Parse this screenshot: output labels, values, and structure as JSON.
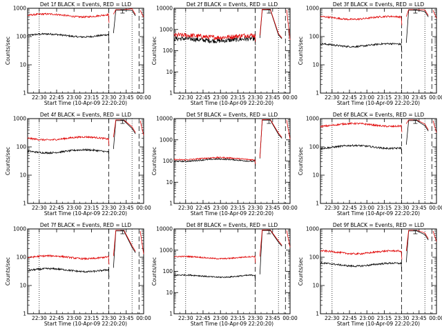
{
  "figure": {
    "panels": [
      {
        "title": "Det 1f BLACK = Events, RED = LLD",
        "ylim": [
          1,
          1000
        ],
        "black_level": 110,
        "red_level": 560,
        "red_end": 600
      },
      {
        "title": "Det 2f BLACK = Events, RED = LLD",
        "ylim": [
          1,
          10000
        ],
        "black_level": 330,
        "red_level": 480,
        "red_end": 400
      },
      {
        "title": "Det 3f BLACK = Events, RED = LLD",
        "ylim": [
          1,
          1000
        ],
        "black_level": 50,
        "red_level": 460,
        "red_end": 550
      },
      {
        "title": "Det 4f BLACK = Events, RED = LLD",
        "ylim": [
          1,
          1000
        ],
        "black_level": 70,
        "red_level": 200,
        "red_end": 320
      },
      {
        "title": "Det 5f BLACK = Events, RED = LLD",
        "ylim": [
          1,
          10000
        ],
        "black_level": 110,
        "red_level": 130,
        "red_end": 1300
      },
      {
        "title": "Det 6f BLACK = Events, RED = LLD",
        "ylim": [
          1,
          1000
        ],
        "black_level": 100,
        "red_level": 600,
        "red_end": 400
      },
      {
        "title": "Det 7f BLACK = Events, RED = LLD",
        "ylim": [
          1,
          1000
        ],
        "black_level": 35,
        "red_level": 100,
        "red_end": 160
      },
      {
        "title": "Det 8f BLACK = Events, RED = LLD",
        "ylim": [
          1,
          10000
        ],
        "black_level": 60,
        "red_level": 450,
        "red_end": 1700
      },
      {
        "title": "Det 9f BLACK = Events, RED = LLD",
        "ylim": [
          1,
          1000
        ],
        "black_level": 55,
        "red_level": 150,
        "red_end": 450
      }
    ],
    "ylabel": "Counts/sec",
    "xlabel": "Start Time (10-Apr-09 22:20:20)",
    "xticks_a": [
      "22:30",
      "22:45",
      "23:00",
      "23:15",
      "23:30",
      "23:45",
      "00:00"
    ],
    "xticks_b": [
      "22:30",
      "22:45",
      "23:00",
      "23:15",
      "23:30",
      "23:45",
      "00:00"
    ],
    "ytick_labels": {
      "1": "1",
      "10": "10",
      "100": "100",
      "1000": "1000",
      "10000": "10000"
    },
    "colors": {
      "events": "#000000",
      "lld": "#e00000",
      "axes": "#000000"
    }
  },
  "chart_data": {
    "type": "line",
    "x_unit": "minutes after 22:20:20",
    "x_range_minutes": [
      0,
      100
    ],
    "y_scale": "log",
    "markers_minutes": {
      "dotted": [
        10,
        90
      ],
      "dashed": [
        70,
        96
      ]
    },
    "series_names": [
      "Events",
      "LLD"
    ],
    "series_colors": [
      "#000000",
      "#e00000"
    ]
  }
}
